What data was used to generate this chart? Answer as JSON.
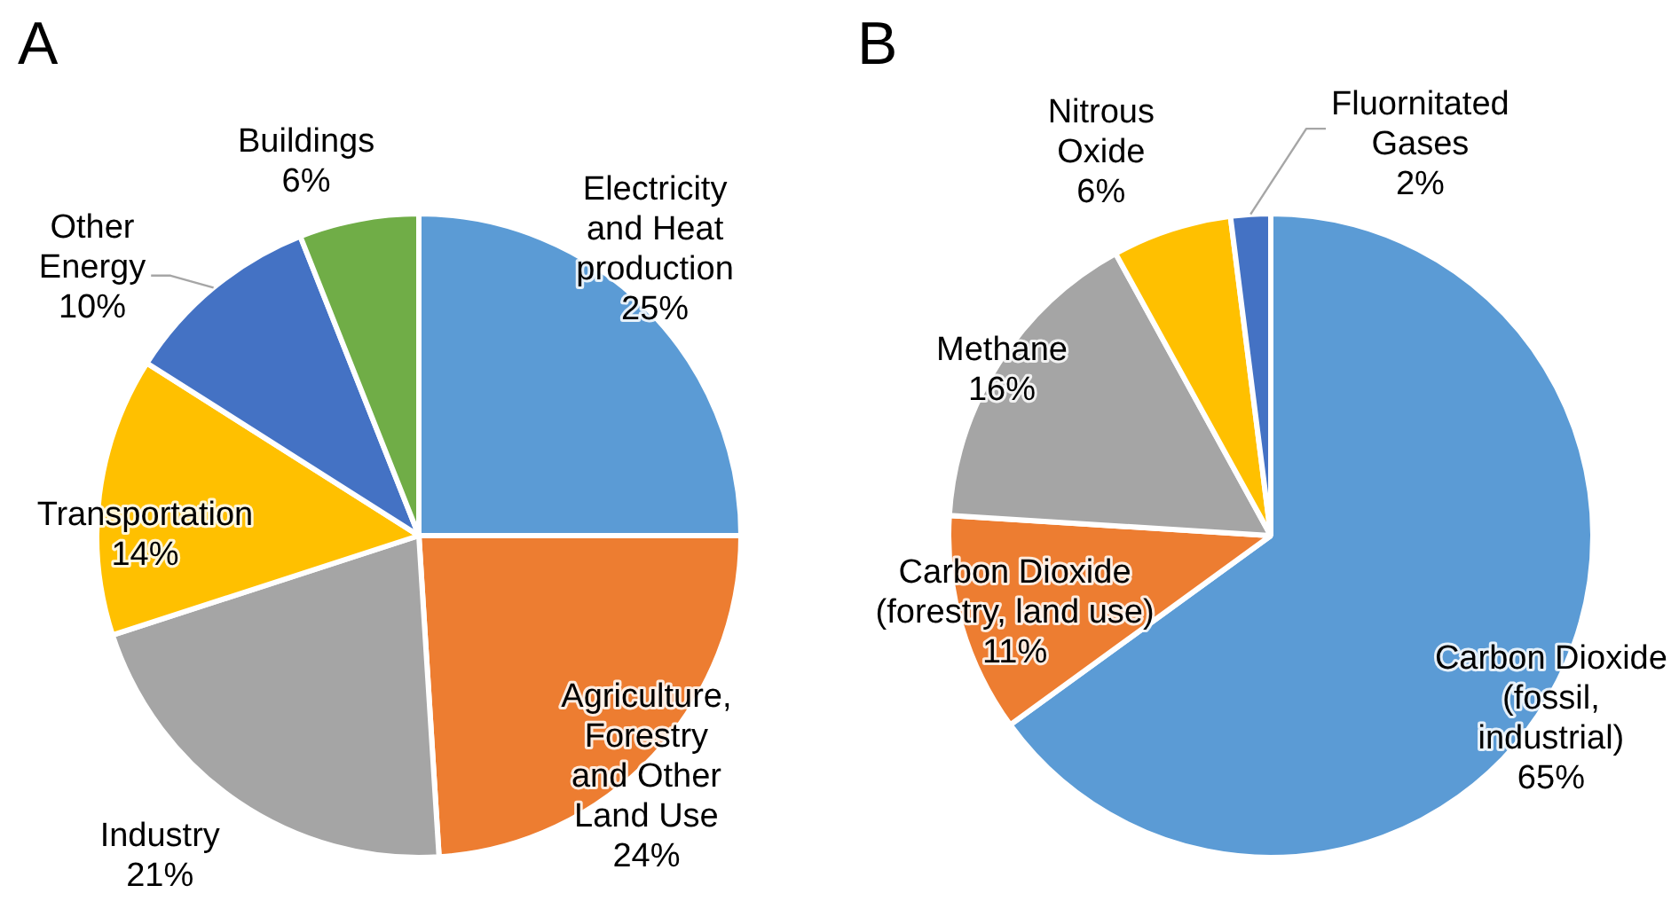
{
  "chart_data": [
    {
      "type": "pie",
      "title": "A",
      "categories": [
        "Electricity\nand Heat\nproduction",
        "Agriculture,\nForestry\nand Other\nLand Use",
        "Industry",
        "Transportation",
        "Other\nEnergy",
        "Buildings"
      ],
      "values": [
        25,
        24,
        21,
        14,
        10,
        6
      ],
      "value_labels": [
        "25%",
        "24%",
        "21%",
        "14%",
        "10%",
        "6%"
      ],
      "colors": [
        "#5b9bd5",
        "#ed7d31",
        "#a5a5a5",
        "#ffc000",
        "#4472c4",
        "#70ad47"
      ]
    },
    {
      "type": "pie",
      "title": "B",
      "categories": [
        "Carbon Dioxide\n(fossil,\nindustrial)",
        "Carbon Dioxide\n(forestry, land use)",
        "Methane",
        "Nitrous\nOxide",
        "Fluornitated\nGases"
      ],
      "values": [
        65,
        11,
        16,
        6,
        2
      ],
      "value_labels": [
        "65%",
        "11%",
        "16%",
        "6%",
        "2%"
      ],
      "colors": [
        "#5b9bd5",
        "#ed7d31",
        "#a5a5a5",
        "#ffc000",
        "#4472c4"
      ]
    }
  ]
}
